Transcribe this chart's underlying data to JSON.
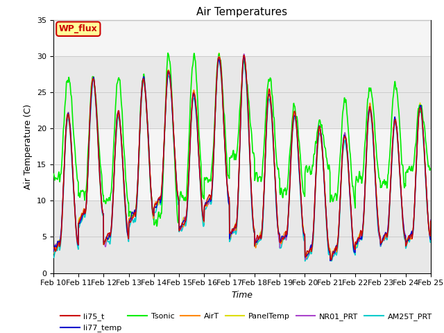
{
  "title": "Air Temperatures",
  "xlabel": "Time",
  "ylabel": "Air Temperature (C)",
  "ylim": [
    0,
    35
  ],
  "series": {
    "li75_t": {
      "color": "#cc0000",
      "lw": 1.0,
      "zorder": 5
    },
    "li77_temp": {
      "color": "#0000cc",
      "lw": 1.0,
      "zorder": 5
    },
    "Tsonic": {
      "color": "#00ee00",
      "lw": 1.2,
      "zorder": 4
    },
    "AirT": {
      "color": "#ff8800",
      "lw": 1.0,
      "zorder": 5
    },
    "PanelTemp": {
      "color": "#dddd00",
      "lw": 1.0,
      "zorder": 3
    },
    "NR01_PRT": {
      "color": "#aa44cc",
      "lw": 1.0,
      "zorder": 5
    },
    "AM25T_PRT": {
      "color": "#00cccc",
      "lw": 1.2,
      "zorder": 4
    }
  },
  "annotation": {
    "text": "WP_flux",
    "facecolor": "#ffff99",
    "edgecolor": "#cc0000",
    "textcolor": "#cc0000",
    "fontsize": 9
  },
  "xtick_labels": [
    "Feb 10",
    "Feb 11",
    "Feb 12",
    "Feb 13",
    "Feb 14",
    "Feb 15",
    "Feb 16",
    "Feb 17",
    "Feb 18",
    "Feb 19",
    "Feb 20",
    "Feb 21",
    "Feb 22",
    "Feb 23",
    "Feb 24",
    "Feb 25"
  ],
  "legend_row1": [
    "li75_t",
    "li77_temp",
    "Tsonic",
    "AirT",
    "PanelTemp",
    "NR01_PRT"
  ],
  "legend_row2": [
    "AM25T_PRT"
  ]
}
